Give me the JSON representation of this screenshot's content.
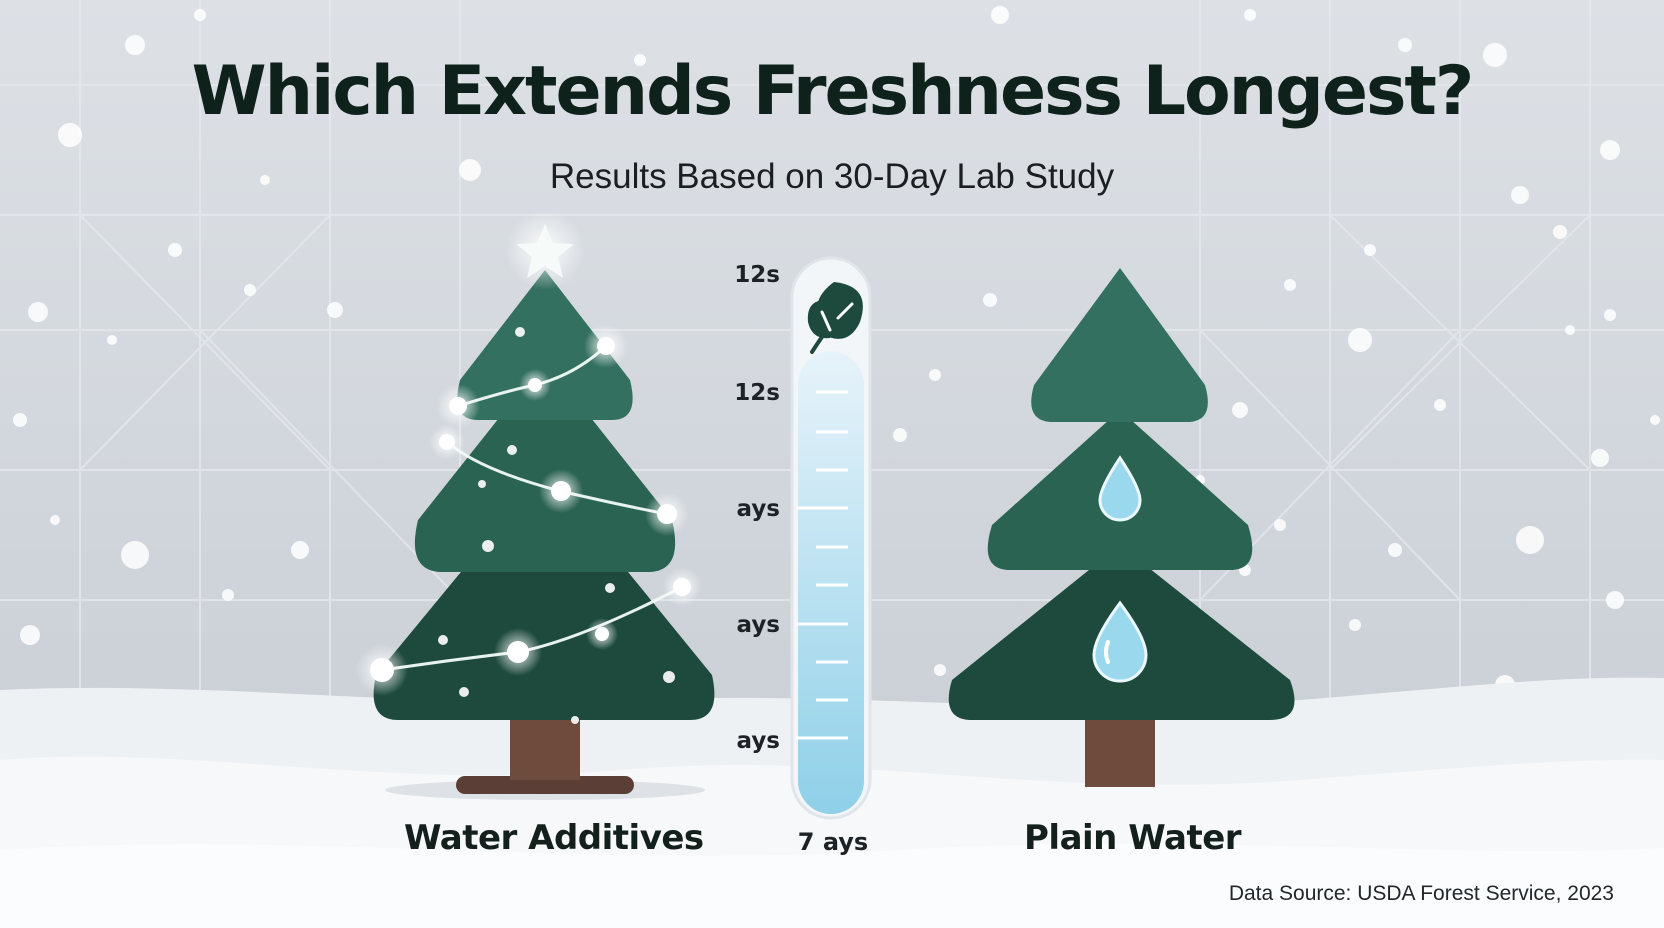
{
  "header": {
    "title": "Which Extends Freshness Longest?",
    "subtitle": "Results Based on 30-Day Lab Study"
  },
  "gauge": {
    "tick_labels": [
      "12s",
      "12s",
      "ays",
      "ays",
      "ays"
    ],
    "bottom_label": "7 ays",
    "icon": "leaf-icon",
    "fill_fraction": 0.87
  },
  "left": {
    "label": "Water Additives",
    "icon": "lit-christmas-tree"
  },
  "right": {
    "label": "Plain Water",
    "icon": "plain-christmas-tree"
  },
  "footer": {
    "source": "Data Source: USDA Forest Service, 2023"
  },
  "colors": {
    "tree_light": "#2f6c59",
    "tree_dark": "#1e4a3e",
    "trunk": "#6b4a3c",
    "water": "#8fd0e8",
    "title": "#0e211b"
  }
}
